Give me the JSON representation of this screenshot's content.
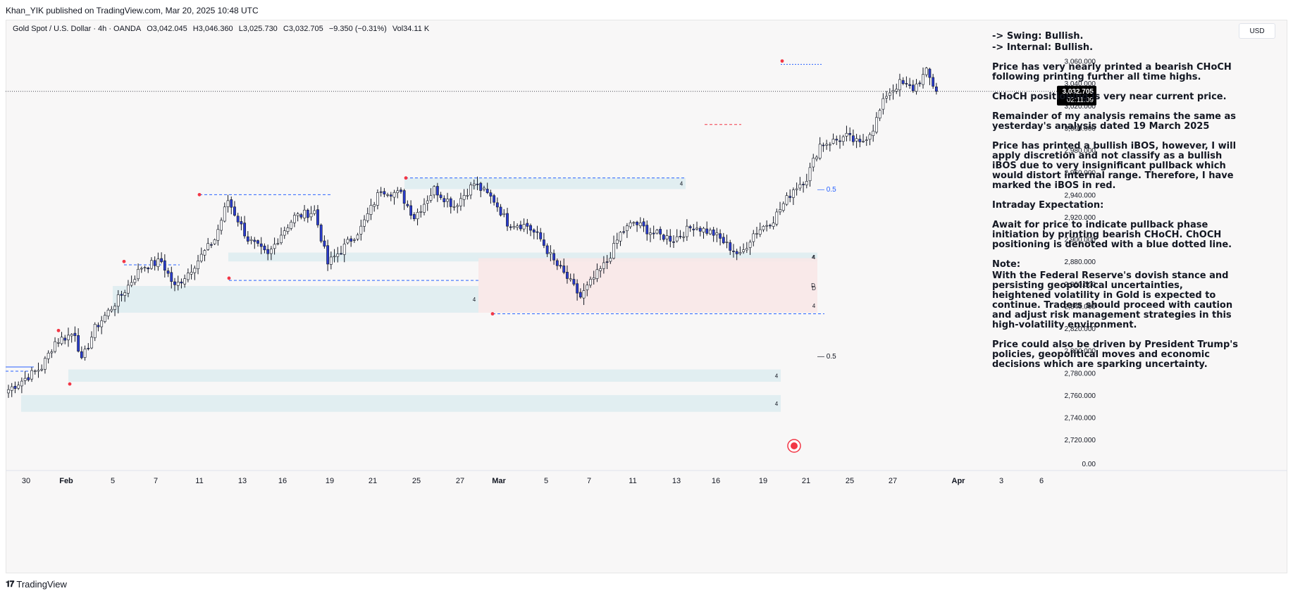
{
  "header": {
    "publisher_line": "Khan_YIK published on TradingView.com, Mar 20, 2025 10:48 UTC"
  },
  "legend": {
    "symbol": "Gold Spot / U.S. Dollar · 4h · OANDA",
    "open": "O3,042.045",
    "high": "H3,046.360",
    "low": "L3,025.730",
    "close": "C3,032.705",
    "change": "−9.350 (−0.31%)",
    "volume": "Vol34.11 K"
  },
  "currency_button": "USD",
  "price_label": {
    "price": "3,032.705",
    "countdown": "02:11:09"
  },
  "notes": {
    "swing": "-> Swing:  Bullish.",
    "internal": "-> Internal:  Bullish.",
    "p1": "Price has very nearly printed a bearish CHoCH following printing further all time highs.",
    "p2": "CHoCH positioning is very near current price.",
    "p3": "Remainder of my analysis remains the same as yesterday's analysis dated 19 March 2025",
    "p4": "Price has printed a bullish iBOS, however, I will apply discretion and not classify as a bullish iBOS due to very insignificant pullback which would distort internal range.  Therefore, I have marked the iBOS in red.",
    "p5": "Intraday Expectation:",
    "p6": "Await for price to indicate pullback phase initiation by printing bearish CHoCH.  ChOCH positioning is denoted with a blue dotted line.",
    "p7_title": "Note:",
    "p7": "With the Federal Reserve's dovish stance and persisting geopolitical uncertainties, heightened volatility in Gold is expected to continue. Traders should proceed with caution and adjust risk management strategies in this high-volatility environment.",
    "p8": "Price could also be driven by President Trump's policies, geopolitical moves and economic decisions which are sparking uncertainty."
  },
  "annotations": {
    "fib_upper": "0.5",
    "fib_lower": "0.5",
    "zone_labels": [
      "4",
      "4",
      "4",
      "4",
      "4",
      "4",
      "4",
      "D"
    ]
  },
  "footer": {
    "brand": "TradingView"
  },
  "colors": {
    "up": "#ffffff",
    "down": "#2a3ccf",
    "zone_blue": "#e1eef1",
    "zone_red": "#f9e6e6",
    "bos_blue": "#2962ff",
    "bos_red": "#f23645",
    "price_label_bg": "#000000"
  },
  "chart_data": {
    "type": "candlestick",
    "symbol": "Gold Spot / U.S. Dollar",
    "timeframe": "4h",
    "ylim": [
      2710,
      3080
    ],
    "y_ticks": [
      "3,060.000",
      "3,040.000",
      "3,020.000",
      "3,000.000",
      "2,980.000",
      "2,960.000",
      "2,940.000",
      "2,920.000",
      "2,900.000",
      "2,880.000",
      "2,860.000",
      "2,840.000",
      "2,820.000",
      "2,800.000",
      "2,780.000",
      "2,760.000",
      "2,740.000",
      "2,720.000"
    ],
    "y_tick_values": [
      3060,
      3040,
      3020,
      3000,
      2980,
      2960,
      2940,
      2920,
      2900,
      2880,
      2860,
      2840,
      2820,
      2800,
      2780,
      2760,
      2740,
      2720
    ],
    "volume_axis_label": "0.00",
    "x_ticks": [
      "30",
      "Feb",
      "5",
      "7",
      "11",
      "13",
      "16",
      "19",
      "21",
      "25",
      "27",
      "Mar",
      "5",
      "7",
      "11",
      "13",
      "16",
      "19",
      "21",
      "25",
      "27",
      "Apr",
      "3",
      "6"
    ],
    "x_tick_bold": [
      "Feb",
      "Mar",
      "Apr"
    ],
    "last_price": 3032.705,
    "waypoints": [
      [
        0,
        2765
      ],
      [
        10,
        2785
      ],
      [
        14,
        2808
      ],
      [
        20,
        2816
      ],
      [
        22,
        2790
      ],
      [
        26,
        2820
      ],
      [
        34,
        2850
      ],
      [
        40,
        2875
      ],
      [
        46,
        2880
      ],
      [
        50,
        2857
      ],
      [
        54,
        2870
      ],
      [
        62,
        2900
      ],
      [
        66,
        2935
      ],
      [
        72,
        2900
      ],
      [
        78,
        2885
      ],
      [
        82,
        2905
      ],
      [
        86,
        2920
      ],
      [
        92,
        2925
      ],
      [
        96,
        2878
      ],
      [
        100,
        2890
      ],
      [
        106,
        2910
      ],
      [
        112,
        2945
      ],
      [
        118,
        2940
      ],
      [
        122,
        2920
      ],
      [
        128,
        2945
      ],
      [
        134,
        2930
      ],
      [
        140,
        2950
      ],
      [
        146,
        2935
      ],
      [
        150,
        2915
      ],
      [
        156,
        2912
      ],
      [
        160,
        2900
      ],
      [
        164,
        2880
      ],
      [
        168,
        2865
      ],
      [
        172,
        2848
      ],
      [
        176,
        2865
      ],
      [
        180,
        2880
      ],
      [
        184,
        2905
      ],
      [
        188,
        2915
      ],
      [
        194,
        2905
      ],
      [
        200,
        2900
      ],
      [
        206,
        2912
      ],
      [
        212,
        2905
      ],
      [
        216,
        2895
      ],
      [
        220,
        2885
      ],
      [
        224,
        2905
      ],
      [
        230,
        2918
      ],
      [
        236,
        2945
      ],
      [
        240,
        2955
      ],
      [
        244,
        2985
      ],
      [
        248,
        2988
      ],
      [
        252,
        2992
      ],
      [
        256,
        2985
      ],
      [
        260,
        3000
      ],
      [
        264,
        3030
      ],
      [
        268,
        3040
      ],
      [
        272,
        3035
      ],
      [
        276,
        3050
      ],
      [
        279,
        3033
      ]
    ],
    "swing_points": [
      3060,
      2955,
      2940,
      2880,
      2865,
      2833,
      2818,
      2770
    ],
    "zones": [
      {
        "kind": "demand",
        "label": "4",
        "low": 2945,
        "high": 2955
      },
      {
        "kind": "demand",
        "label": "4",
        "low": 2880,
        "high": 2888
      },
      {
        "kind": "demand",
        "label": "4",
        "low": 2834,
        "high": 2858
      },
      {
        "kind": "demand",
        "label": "4",
        "low": 2772,
        "high": 2783
      },
      {
        "kind": "demand",
        "label": "4",
        "low": 2745,
        "high": 2760
      },
      {
        "kind": "supply",
        "label": "D",
        "low": 2834,
        "high": 2883
      }
    ],
    "levels": [
      {
        "kind": "choch",
        "color": "blue",
        "value": 3057
      },
      {
        "kind": "ibos",
        "color": "red",
        "value": 3003
      },
      {
        "kind": "bos",
        "color": "blue",
        "value": 2955
      },
      {
        "kind": "bos",
        "color": "blue",
        "value": 2940
      },
      {
        "kind": "bos",
        "color": "blue",
        "value": 2877
      },
      {
        "kind": "bos",
        "color": "blue",
        "value": 2863
      },
      {
        "kind": "bos",
        "color": "blue",
        "value": 2833
      }
    ]
  }
}
